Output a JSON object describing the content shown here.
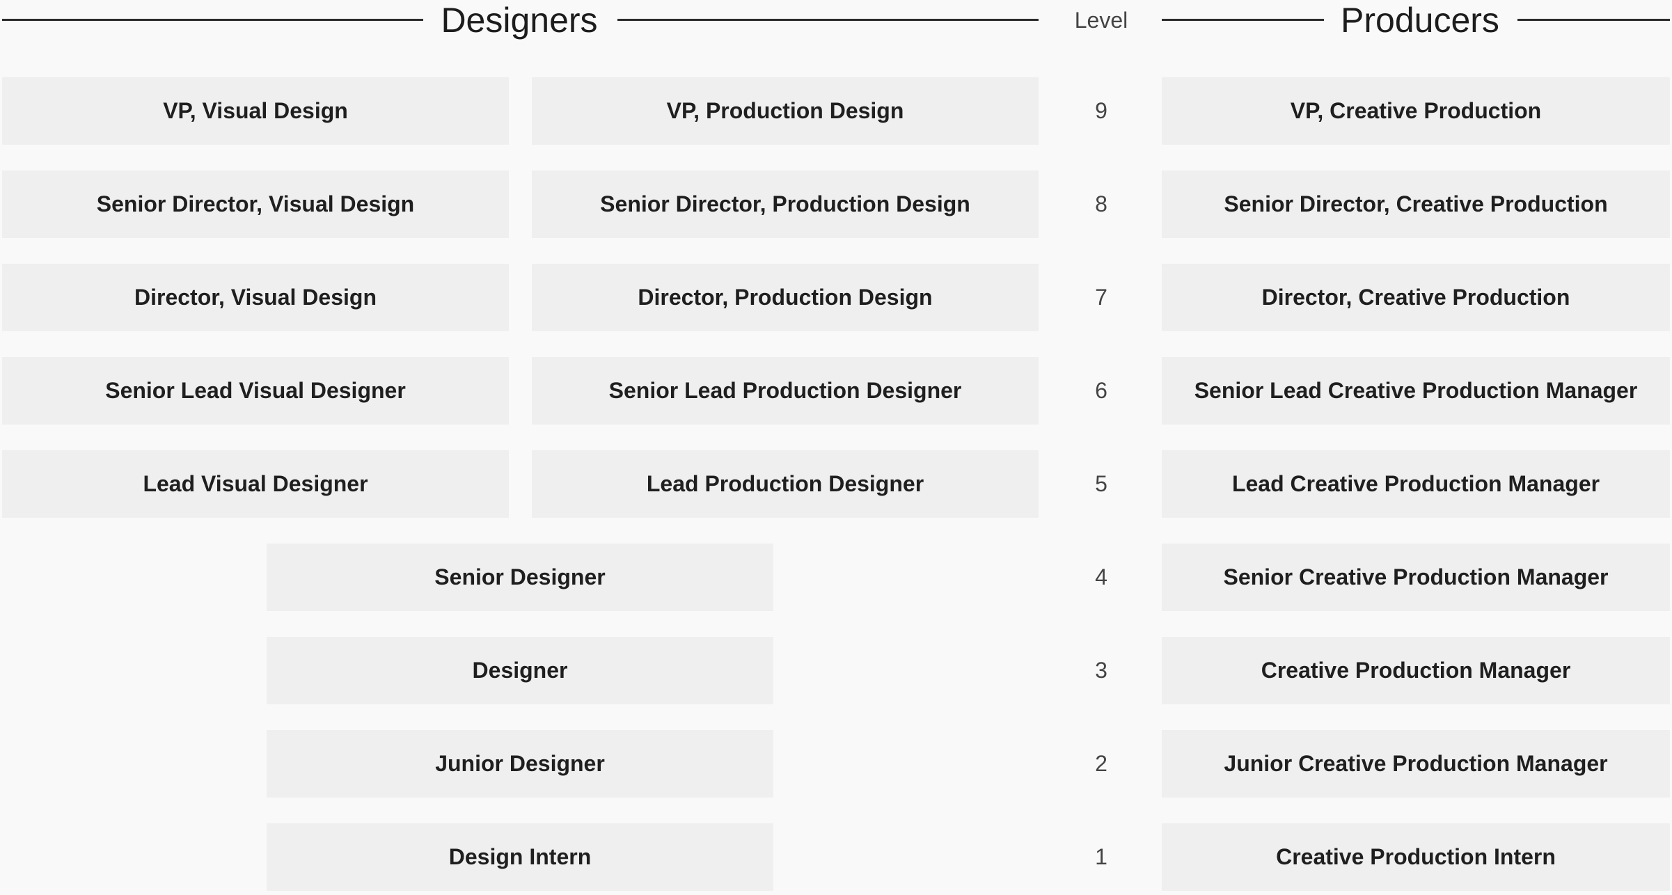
{
  "header": {
    "designers_title": "Designers",
    "level_title": "Level",
    "producers_title": "Producers"
  },
  "rows": [
    {
      "level": "9",
      "visual": "VP, Visual Design",
      "production": "VP, Production Design",
      "producer": "VP, Creative Production"
    },
    {
      "level": "8",
      "visual": "Senior Director, Visual Design",
      "production": "Senior Director, Production Design",
      "producer": "Senior Director, Creative Production"
    },
    {
      "level": "7",
      "visual": "Director, Visual Design",
      "production": "Director, Production Design",
      "producer": "Director, Creative Production"
    },
    {
      "level": "6",
      "visual": "Senior Lead Visual Designer",
      "production": "Senior Lead Production Designer",
      "producer": "Senior Lead Creative Production Manager"
    },
    {
      "level": "5",
      "visual": "Lead Visual Designer",
      "production": "Lead Production Designer",
      "producer": "Lead Creative Production Manager"
    },
    {
      "level": "4",
      "designer": "Senior Designer",
      "producer": "Senior Creative Production Manager"
    },
    {
      "level": "3",
      "designer": "Designer",
      "producer": "Creative Production Manager"
    },
    {
      "level": "2",
      "designer": "Junior Designer",
      "producer": "Junior Creative Production Manager"
    },
    {
      "level": "1",
      "designer": "Design Intern",
      "producer": "Creative Production Intern"
    }
  ]
}
